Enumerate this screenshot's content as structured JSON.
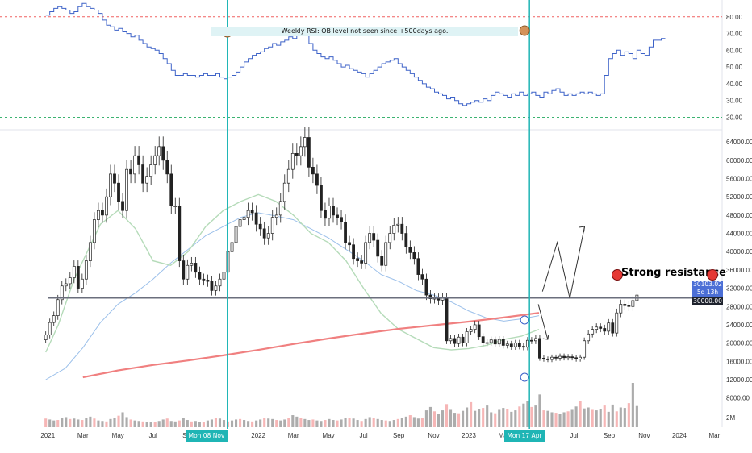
{
  "rsi_annotation": "Weekly RSI: OB level not seen since +500days ago.",
  "resistance_label": "Strong resistance",
  "date_tags": [
    "Mon 08 Nov '21",
    "Mon 17 Apr '23"
  ],
  "price_tags": {
    "last": "30103.02",
    "countdown": "5d 13h",
    "level": "30000.00"
  },
  "colors": {
    "rsi_line": "#3d62c8",
    "resistance_line": "#6b6f7d",
    "vertical_line": "#1fb5b5",
    "red_ma": "#f08080",
    "green_ma": "#b5dbb9",
    "blue_ma": "#9cc0ea",
    "dot": "#e53935"
  },
  "chart_data": [
    {
      "type": "line",
      "panel": "RSI",
      "ytick_labels": [
        "80.00",
        "70.00",
        "60.00",
        "50.00",
        "40.00",
        "30.00",
        "20.00"
      ],
      "yticks": [
        80,
        70,
        60,
        50,
        40,
        30,
        20
      ],
      "ylim": [
        13,
        90
      ],
      "levels": {
        "overbought": 80,
        "oversold": 20
      },
      "start_x": 0.99,
      "x_step": 0.0833,
      "values": [
        81,
        83,
        85,
        86,
        85,
        84,
        82,
        83,
        86,
        88,
        86,
        85,
        84,
        82,
        78,
        75,
        74,
        72,
        73,
        71,
        70,
        68,
        69,
        66,
        64,
        62,
        61,
        60,
        58,
        55,
        52,
        48,
        45,
        45,
        46,
        45,
        45,
        44,
        45,
        46,
        45,
        45,
        46,
        44,
        43,
        44,
        45,
        47,
        50,
        53,
        55,
        57,
        58,
        59,
        61,
        62,
        64,
        63,
        65,
        66,
        68,
        67,
        69,
        70,
        69,
        64,
        60,
        58,
        56,
        55,
        56,
        54,
        52,
        50,
        51,
        49,
        48,
        47,
        46,
        44,
        46,
        48,
        50,
        52,
        53,
        54,
        55,
        52,
        50,
        48,
        46,
        44,
        42,
        40,
        38,
        37,
        35,
        34,
        33,
        31,
        32,
        30,
        28,
        27,
        28,
        29,
        30,
        29,
        31,
        30,
        33,
        35,
        34,
        33,
        32,
        34,
        33,
        35,
        33,
        34,
        35,
        33,
        32,
        35,
        34,
        36,
        37,
        35,
        33,
        34,
        33,
        34,
        35,
        34,
        35,
        34,
        33,
        34,
        45,
        55,
        58,
        60,
        57,
        59,
        58,
        55,
        60,
        58,
        57,
        62,
        66,
        66,
        67
      ]
    },
    {
      "type": "candlestick",
      "panel": "BTC weekly price",
      "ytick_labels": [
        "64000.00",
        "60000.00",
        "56000.00",
        "52000.00",
        "48000.00",
        "44000.00",
        "40000.00",
        "36000.00",
        "32000.00",
        "28000.00",
        "24000.00",
        "20000.00",
        "16000.00",
        "12000.00",
        "8000.00"
      ],
      "yticks": [
        64000,
        60000,
        56000,
        52000,
        48000,
        44000,
        40000,
        36000,
        32000,
        28000,
        24000,
        20000,
        16000,
        12000,
        8000
      ],
      "ylim": [
        3000,
        66500
      ],
      "resistance_level": 29900,
      "xtick_labels": [
        "2021",
        "Mar",
        "May",
        "Jul",
        "Sep",
        "2022",
        "Mar",
        "May",
        "Jul",
        "Sep",
        "Nov",
        "2023",
        "Mar",
        "May",
        "Jul",
        "Sep",
        "Nov",
        "2024",
        "Mar"
      ],
      "xticks": [
        1,
        1.1667,
        1.3333,
        1.5,
        1.6667,
        2,
        2.1667,
        2.3333,
        2.5,
        2.6667,
        2.8333,
        3,
        3.1667,
        3.3333,
        3.5,
        3.6667,
        3.8333,
        4,
        4.1667
      ],
      "xlim": [
        0.7727,
        4.2036
      ],
      "start_x": 0.99,
      "x_step": 0.0833,
      "closes": [
        21800,
        24500,
        26000,
        29500,
        32500,
        33000,
        34300,
        36800,
        32000,
        34000,
        38000,
        42000,
        47000,
        49000,
        48000,
        52000,
        57000,
        55000,
        51000,
        49000,
        58000,
        57000,
        61000,
        59000,
        55000,
        56500,
        59000,
        61000,
        63000,
        60000,
        57000,
        50000,
        50000,
        38000,
        34000,
        37000,
        37500,
        35500,
        34000,
        33800,
        33500,
        31500,
        32500,
        34000,
        35500,
        40000,
        42000,
        45500,
        47000,
        47500,
        49000,
        48500,
        46000,
        45000,
        43000,
        44000,
        47500,
        48000,
        51000,
        55000,
        58000,
        61500,
        61000,
        63000,
        65000,
        58500,
        57000,
        54500,
        49000,
        47300,
        50000,
        48000,
        47500,
        46500,
        42000,
        41500,
        38500,
        38000,
        37500,
        42000,
        44000,
        42500,
        39000,
        37000,
        42000,
        44000,
        45800,
        46000,
        44000,
        41000,
        39800,
        38500,
        35000,
        34000,
        30500,
        29700,
        29800,
        29400,
        30000,
        20500,
        21000,
        19900,
        21300,
        20000,
        22500,
        23000,
        24000,
        21400,
        20000,
        20100,
        20700,
        19800,
        20800,
        19500,
        19800,
        19200,
        20000,
        19300,
        19100,
        20600,
        20500,
        21000,
        16700,
        16500,
        16400,
        16900,
        16700,
        17100,
        16800,
        17000,
        16800,
        16500,
        16900,
        20500,
        22000,
        23000,
        23500,
        23200,
        22600,
        24400,
        22200,
        26600,
        28500,
        28200,
        28000,
        29300,
        30500
      ],
      "ma_red_values": [
        [
          1.1667,
          12500
        ],
        [
          1.3333,
          14000
        ],
        [
          1.5,
          15200
        ],
        [
          1.6667,
          16200
        ],
        [
          1.8333,
          17300
        ],
        [
          2,
          18500
        ],
        [
          2.1667,
          19800
        ],
        [
          2.3333,
          21000
        ],
        [
          2.5,
          22100
        ],
        [
          2.6667,
          23100
        ],
        [
          2.8333,
          23900
        ],
        [
          3,
          24700
        ],
        [
          3.1667,
          25600
        ],
        [
          3.3333,
          26600
        ]
      ],
      "ma_green_values": [
        [
          0.99,
          18000
        ],
        [
          1.05,
          24000
        ],
        [
          1.125,
          34000
        ],
        [
          1.1667,
          38000
        ],
        [
          1.25,
          46000
        ],
        [
          1.3333,
          49000
        ],
        [
          1.4167,
          45000
        ],
        [
          1.5,
          38000
        ],
        [
          1.5833,
          37000
        ],
        [
          1.6667,
          40000
        ],
        [
          1.75,
          45500
        ],
        [
          1.8333,
          49000
        ],
        [
          1.9167,
          51000
        ],
        [
          2,
          52500
        ],
        [
          2.0833,
          51000
        ],
        [
          2.1667,
          48000
        ],
        [
          2.25,
          44000
        ],
        [
          2.3333,
          42000
        ],
        [
          2.4167,
          38000
        ],
        [
          2.5,
          32000
        ],
        [
          2.5833,
          26500
        ],
        [
          2.6667,
          23000
        ],
        [
          2.75,
          21000
        ],
        [
          2.8333,
          19000
        ],
        [
          2.9167,
          18500
        ],
        [
          3,
          18800
        ],
        [
          3.0833,
          19500
        ],
        [
          3.1667,
          20800
        ],
        [
          3.25,
          21500
        ],
        [
          3.3333,
          23000
        ]
      ],
      "ma_blue_values": [
        [
          0.99,
          12000
        ],
        [
          1.0833,
          14500
        ],
        [
          1.1667,
          19000
        ],
        [
          1.25,
          24500
        ],
        [
          1.3333,
          28500
        ],
        [
          1.4167,
          31000
        ],
        [
          1.5,
          34000
        ],
        [
          1.5833,
          37500
        ],
        [
          1.6667,
          40500
        ],
        [
          1.75,
          43500
        ],
        [
          1.8333,
          45500
        ],
        [
          1.9167,
          47500
        ],
        [
          2,
          48500
        ],
        [
          2.0833,
          47800
        ],
        [
          2.1667,
          47000
        ],
        [
          2.25,
          45000
        ],
        [
          2.3333,
          43000
        ],
        [
          2.4167,
          40500
        ],
        [
          2.5,
          38000
        ],
        [
          2.5833,
          35000
        ],
        [
          2.6667,
          33500
        ],
        [
          2.75,
          31500
        ],
        [
          2.8333,
          30500
        ],
        [
          2.9167,
          29000
        ],
        [
          3,
          27000
        ],
        [
          3.0833,
          25500
        ],
        [
          3.1667,
          24800
        ],
        [
          3.25,
          25300
        ],
        [
          3.3333,
          26000
        ]
      ],
      "projection": [
        [
          3.35,
          31300
        ],
        [
          3.42,
          42000
        ],
        [
          3.48,
          29800
        ],
        [
          3.55,
          45500
        ]
      ]
    },
    {
      "type": "bar",
      "panel": "Volume",
      "ytick_labels": [
        "2M"
      ],
      "yticks": [
        2
      ],
      "start_x": 0.99,
      "x_step": 0.0833,
      "values": [
        1.8,
        1.6,
        1.4,
        1.5,
        1.9,
        2.1,
        1.7,
        1.8,
        1.6,
        1.5,
        1.9,
        2.2,
        1.8,
        1.4,
        1.3,
        1.2,
        1.7,
        1.9,
        2.4,
        3.1,
        2.1,
        1.6,
        1.4,
        1.3,
        1.2,
        1.1,
        1.0,
        1.1,
        1.3,
        1.6,
        1.8,
        1.3,
        1.2,
        1.4,
        2.0,
        1.5,
        1.2,
        1.3,
        1.1,
        1.0,
        1.4,
        1.6,
        1.9,
        1.8,
        1.5,
        1.2,
        1.4,
        1.6,
        1.7,
        1.5,
        1.3,
        1.2,
        1.4,
        1.6,
        1.9,
        1.8,
        1.7,
        1.5,
        1.4,
        1.6,
        1.9,
        2.5,
        2.2,
        2.0,
        1.7,
        1.5,
        1.6,
        1.4,
        1.3,
        1.5,
        1.7,
        1.5,
        1.4,
        1.6,
        1.9,
        2.0,
        1.8,
        1.5,
        1.3,
        1.7,
        2.1,
        1.9,
        1.7,
        1.5,
        1.4,
        1.3,
        1.5,
        1.7,
        1.9,
        2.2,
        2.5,
        2.1,
        1.8,
        2.0,
        3.5,
        4.2,
        3.3,
        2.8,
        3.5,
        4.8,
        3.6,
        3.0,
        2.9,
        3.4,
        4.1,
        5.2,
        3.4,
        3.8,
        4.0,
        4.5,
        3.1,
        2.9,
        3.6,
        4.0,
        3.8,
        3.2,
        3.5,
        4.3,
        4.9,
        5.4,
        4.2,
        4.5,
        6.8,
        3.5,
        3.4,
        3.1,
        3.0,
        2.8,
        3.1,
        3.3,
        3.6,
        4.3,
        5.5,
        3.9,
        4.1,
        3.6,
        3.5,
        3.8,
        4.5,
        3.2,
        4.7,
        3.3,
        4.1,
        4.0,
        5.0,
        9.2,
        4.4
      ]
    }
  ]
}
